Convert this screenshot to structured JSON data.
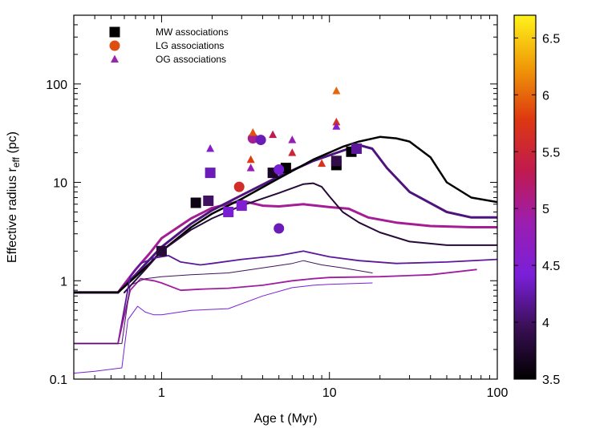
{
  "chart_data": {
    "type": "scatter",
    "xlabel": "Age t (Myr)",
    "ylabel": "Effective radius r",
    "ylabel_sub": "eff",
    "ylabel_unit": " (pc)",
    "xscale": "log",
    "yscale": "log",
    "xlim": [
      0.3,
      100
    ],
    "ylim": [
      0.1,
      500
    ],
    "grid": false,
    "legend_position": "top-left",
    "x_ticks": [
      {
        "value": 1,
        "label": "1"
      },
      {
        "value": 10,
        "label": "10"
      },
      {
        "value": 100,
        "label": "100"
      }
    ],
    "y_ticks": [
      {
        "value": 0.1,
        "label": "0.1"
      },
      {
        "value": 1,
        "label": "1"
      },
      {
        "value": 10,
        "label": "10"
      },
      {
        "value": 100,
        "label": "100"
      }
    ],
    "colorbar": {
      "min": 3.5,
      "max": 6.7,
      "ticks": [
        {
          "value": 3.5,
          "label": "3.5"
        },
        {
          "value": 4,
          "label": "4"
        },
        {
          "value": 4.5,
          "label": "4.5"
        },
        {
          "value": 5,
          "label": "5"
        },
        {
          "value": 5.5,
          "label": "5.5"
        },
        {
          "value": 6,
          "label": "6"
        },
        {
          "value": 6.5,
          "label": "6.5"
        }
      ],
      "colormap": [
        "#000000",
        "#3a0f55",
        "#7a1fd9",
        "#9b1eb0",
        "#c01a50",
        "#dd3810",
        "#f09a08",
        "#fff21a"
      ]
    },
    "legend": [
      {
        "label": "MW associations",
        "marker": "square",
        "color": "#000000"
      },
      {
        "label": "LG associations",
        "marker": "circle",
        "color": "#dd4e10"
      },
      {
        "label": "OG associations",
        "marker": "triangle",
        "color": "#9b25b0"
      }
    ],
    "series": [
      {
        "points": [
          [
            0.3,
            0.76
          ],
          [
            0.55,
            0.76
          ],
          [
            0.7,
            1.3
          ],
          [
            0.85,
            1.9
          ],
          [
            1,
            2.7
          ],
          [
            1.5,
            4.3
          ],
          [
            2,
            5.5
          ],
          [
            3,
            6.5
          ],
          [
            4,
            5.8
          ],
          [
            5,
            5.7
          ],
          [
            7,
            6.0
          ],
          [
            10,
            5.6
          ],
          [
            13,
            5.4
          ],
          [
            17,
            4.4
          ],
          [
            25,
            3.9
          ],
          [
            40,
            3.6
          ],
          [
            70,
            3.5
          ],
          [
            100,
            3.5
          ]
        ],
        "z": 5.0,
        "width": 3
      },
      {
        "points": [
          [
            0.3,
            0.76
          ],
          [
            0.55,
            0.76
          ],
          [
            0.7,
            1.15
          ],
          [
            0.85,
            1.65
          ],
          [
            1,
            2.2
          ],
          [
            1.5,
            3.8
          ],
          [
            2,
            5.2
          ],
          [
            3,
            7.4
          ],
          [
            5,
            11.5
          ],
          [
            8,
            16.5
          ],
          [
            12,
            21
          ],
          [
            15,
            24
          ],
          [
            18,
            22
          ],
          [
            22,
            14
          ],
          [
            30,
            8
          ],
          [
            50,
            5
          ],
          [
            70,
            4.4
          ],
          [
            100,
            4.4
          ]
        ],
        "z": 4.1,
        "width": 3
      },
      {
        "points": [
          [
            0.3,
            0.76
          ],
          [
            0.55,
            0.76
          ],
          [
            0.7,
            1.1
          ],
          [
            0.85,
            1.5
          ],
          [
            1,
            2.0
          ],
          [
            1.5,
            3.5
          ],
          [
            2,
            4.8
          ],
          [
            3,
            6.8
          ],
          [
            5,
            11
          ],
          [
            8,
            17
          ],
          [
            12,
            23
          ],
          [
            15,
            26
          ],
          [
            20,
            29
          ],
          [
            25,
            28
          ],
          [
            30,
            26
          ],
          [
            40,
            18
          ],
          [
            50,
            10
          ],
          [
            70,
            7
          ],
          [
            100,
            6.3
          ]
        ],
        "z": 3.5,
        "width": 2.5
      },
      {
        "points": [
          [
            0.6,
            0.76
          ],
          [
            0.8,
            1.3
          ],
          [
            1,
            2.0
          ],
          [
            1.5,
            3.3
          ],
          [
            2,
            4.3
          ],
          [
            3,
            5.8
          ],
          [
            5,
            7.8
          ],
          [
            7,
            9.6
          ],
          [
            8,
            9.8
          ],
          [
            9,
            9.0
          ],
          [
            10,
            7.2
          ],
          [
            12,
            5.0
          ],
          [
            15,
            3.9
          ],
          [
            20,
            3.1
          ],
          [
            30,
            2.5
          ],
          [
            50,
            2.3
          ],
          [
            100,
            2.3
          ]
        ],
        "z": 3.8,
        "width": 2
      },
      {
        "points": [
          [
            0.3,
            0.23
          ],
          [
            0.55,
            0.23
          ],
          [
            0.65,
            1.1
          ],
          [
            0.75,
            1.5
          ],
          [
            0.9,
            1.7
          ],
          [
            1.1,
            1.8
          ],
          [
            1.3,
            1.55
          ],
          [
            1.7,
            1.45
          ],
          [
            2,
            1.5
          ],
          [
            3,
            1.65
          ],
          [
            5,
            1.8
          ],
          [
            7,
            2.0
          ],
          [
            10,
            1.75
          ],
          [
            15,
            1.6
          ],
          [
            25,
            1.5
          ],
          [
            50,
            1.55
          ],
          [
            100,
            1.65
          ]
        ],
        "z": 4.2,
        "width": 1.8
      },
      {
        "points": [
          [
            0.3,
            0.23
          ],
          [
            0.55,
            0.23
          ],
          [
            0.65,
            0.8
          ],
          [
            0.75,
            1.05
          ],
          [
            0.9,
            1.0
          ],
          [
            1,
            0.95
          ],
          [
            1.3,
            0.8
          ],
          [
            1.7,
            0.82
          ],
          [
            2.5,
            0.84
          ],
          [
            4,
            0.9
          ],
          [
            6,
            1.0
          ],
          [
            8,
            1.05
          ],
          [
            10,
            1.08
          ],
          [
            20,
            1.1
          ],
          [
            40,
            1.15
          ],
          [
            75,
            1.3
          ]
        ],
        "z": 4.95,
        "width": 1.8
      },
      {
        "points": [
          [
            0.3,
            0.23
          ],
          [
            0.58,
            0.23
          ],
          [
            0.65,
            0.9
          ],
          [
            0.8,
            1.05
          ],
          [
            1,
            1.1
          ],
          [
            1.5,
            1.15
          ],
          [
            2.5,
            1.2
          ],
          [
            4,
            1.35
          ],
          [
            6,
            1.5
          ],
          [
            7,
            1.6
          ],
          [
            9,
            1.45
          ],
          [
            12,
            1.35
          ],
          [
            18,
            1.2
          ]
        ],
        "z": 4.0,
        "width": 1
      },
      {
        "points": [
          [
            0.3,
            0.115
          ],
          [
            0.4,
            0.12
          ],
          [
            0.58,
            0.13
          ],
          [
            0.63,
            0.4
          ],
          [
            0.72,
            0.55
          ],
          [
            0.8,
            0.48
          ],
          [
            0.9,
            0.45
          ],
          [
            1,
            0.45
          ],
          [
            1.5,
            0.5
          ],
          [
            2.5,
            0.52
          ],
          [
            4,
            0.7
          ],
          [
            6,
            0.85
          ],
          [
            8,
            0.9
          ],
          [
            10,
            0.92
          ],
          [
            18,
            0.95
          ]
        ],
        "z": 4.4,
        "width": 1
      }
    ],
    "points": [
      {
        "marker": "square",
        "x": 1,
        "y": 2.0,
        "z": 3.8
      },
      {
        "marker": "square",
        "x": 1.6,
        "y": 6.2,
        "z": 3.6
      },
      {
        "marker": "square",
        "x": 1.9,
        "y": 6.5,
        "z": 4.0
      },
      {
        "marker": "square",
        "x": 1.95,
        "y": 12.5,
        "z": 4.3
      },
      {
        "marker": "square",
        "x": 2.5,
        "y": 5.0,
        "z": 4.4
      },
      {
        "marker": "square",
        "x": 3,
        "y": 5.8,
        "z": 4.5
      },
      {
        "marker": "square",
        "x": 4.6,
        "y": 12.5,
        "z": 3.7
      },
      {
        "marker": "square",
        "x": 5.5,
        "y": 14.0,
        "z": 3.5
      },
      {
        "marker": "square",
        "x": 11,
        "y": 15.0,
        "z": 3.5
      },
      {
        "marker": "square",
        "x": 11,
        "y": 16.5,
        "z": 3.9
      },
      {
        "marker": "square",
        "x": 13.5,
        "y": 20.5,
        "z": 3.5
      },
      {
        "marker": "square",
        "x": 14.5,
        "y": 22.0,
        "z": 4.2
      },
      {
        "marker": "circle",
        "x": 2.9,
        "y": 9.0,
        "z": 5.6
      },
      {
        "marker": "circle",
        "x": 3.5,
        "y": 28.0,
        "z": 5.0
      },
      {
        "marker": "circle",
        "x": 3.9,
        "y": 27.0,
        "z": 4.3
      },
      {
        "marker": "circle",
        "x": 5.0,
        "y": 13.5,
        "z": 4.4
      },
      {
        "marker": "circle",
        "x": 5.0,
        "y": 3.4,
        "z": 4.3
      },
      {
        "marker": "triangle",
        "x": 1.95,
        "y": 22.0,
        "z": 4.6
      },
      {
        "marker": "triangle",
        "x": 3.4,
        "y": 14.0,
        "z": 4.8
      },
      {
        "marker": "triangle",
        "x": 3.4,
        "y": 17.0,
        "z": 5.8
      },
      {
        "marker": "triangle",
        "x": 3.5,
        "y": 32.0,
        "z": 5.9
      },
      {
        "marker": "triangle",
        "x": 4.6,
        "y": 30.5,
        "z": 5.3
      },
      {
        "marker": "triangle",
        "x": 6,
        "y": 27.0,
        "z": 4.8
      },
      {
        "marker": "triangle",
        "x": 6,
        "y": 20.0,
        "z": 5.5
      },
      {
        "marker": "triangle",
        "x": 9,
        "y": 15.5,
        "z": 5.7
      },
      {
        "marker": "triangle",
        "x": 11,
        "y": 85.0,
        "z": 6.0
      },
      {
        "marker": "triangle",
        "x": 11,
        "y": 41.0,
        "z": 5.7
      },
      {
        "marker": "triangle",
        "x": 11,
        "y": 37.0,
        "z": 4.6
      }
    ]
  }
}
